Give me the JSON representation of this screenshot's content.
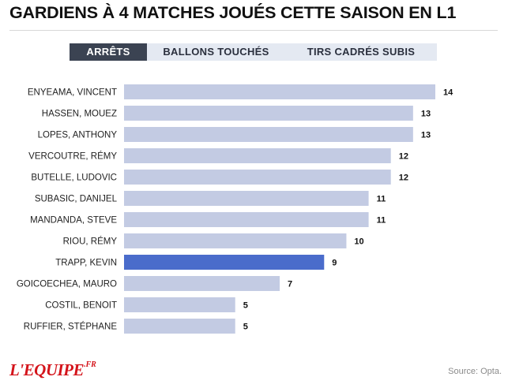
{
  "title": "GARDIENS À 4 MATCHES JOUÉS CETTE SAISON EN L1",
  "tabs": [
    {
      "label": "ARRÊTS",
      "active": true
    },
    {
      "label": "BALLONS TOUCHÉS",
      "active": false
    },
    {
      "label": "TIRS CADRÉS SUBIS",
      "active": false
    }
  ],
  "colors": {
    "bar_default": "#c3cbe3",
    "bar_highlight": "#4a6ccb",
    "tab_active": "#3b4352",
    "tab_inactive": "#e4e9f2",
    "logo": "#d4141b"
  },
  "chart_data": {
    "type": "bar",
    "orientation": "horizontal",
    "categories": [
      "ENYEAMA, VINCENT",
      "HASSEN, MOUEZ",
      "LOPES, ANTHONY",
      "VERCOUTRE, RÉMY",
      "BUTELLE, LUDOVIC",
      "SUBASIC, DANIJEL",
      "MANDANDA, STEVE",
      "RIOU, RÉMY",
      "TRAPP, KEVIN",
      "GOICOECHEA, MAURO",
      "COSTIL, BENOIT",
      "RUFFIER, STÉPHANE"
    ],
    "values": [
      14,
      13,
      13,
      12,
      12,
      11,
      11,
      10,
      9,
      7,
      5,
      5
    ],
    "highlight": "TRAPP, KEVIN",
    "xlim": [
      0,
      14
    ],
    "grid": false,
    "legend": "none"
  },
  "footer": {
    "logo_main": "L'EQUIPE",
    "logo_suffix": ".FR",
    "source": "Source: Opta."
  }
}
